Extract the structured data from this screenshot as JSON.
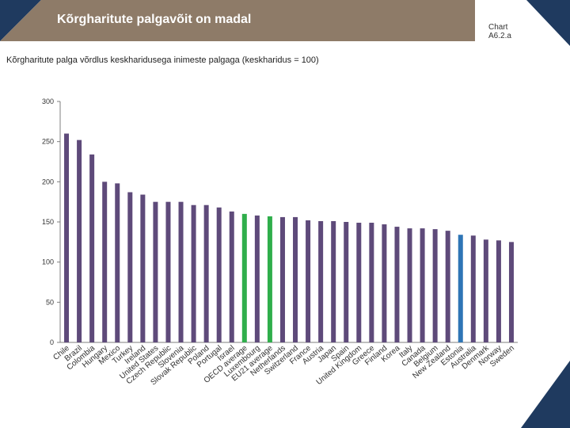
{
  "slide": {
    "title": "Kõrgharitute palgavõit on madal",
    "chart_ref_line1": "Chart",
    "chart_ref_line2": "A6.2.a",
    "subtitle": "Kõrgharitute palga võrdlus keskharidusega inimeste palgaga (keskharidus = 100)"
  },
  "colors": {
    "banner": "#8e7b68",
    "corner": "#1f3a5f",
    "bar_default": "#5e4a7a",
    "bar_oecd": "#2fae4b",
    "bar_estonia": "#2e75b6",
    "axis": "#7f7f7f"
  },
  "chart_data": {
    "type": "bar",
    "title": "Kõrgharitute palga võrdlus keskharidusega inimeste palgaga (keskharidus = 100)",
    "xlabel": "",
    "ylabel": "",
    "ylim": [
      0,
      300
    ],
    "yticks": [
      0,
      50,
      100,
      150,
      200,
      250,
      300
    ],
    "grid": false,
    "categories": [
      "Chile",
      "Brazil",
      "Colombia",
      "Hungary",
      "Mexico",
      "Turkey",
      "Ireland",
      "United States",
      "Czech Republic",
      "Slovenia",
      "Slovak Republic",
      "Poland",
      "Portugal",
      "Israel",
      "OECD average",
      "Luxembourg",
      "EU21 average",
      "Netherlands",
      "Switzerland",
      "France",
      "Austria",
      "Japan",
      "Spain",
      "United Kingdom",
      "Greece",
      "Finland",
      "Korea",
      "Italy",
      "Canada",
      "Belgium",
      "New Zealand",
      "Estonia",
      "Australia",
      "Denmark",
      "Norway",
      "Sweden"
    ],
    "values": [
      260,
      252,
      234,
      200,
      198,
      187,
      184,
      175,
      175,
      175,
      171,
      171,
      168,
      163,
      160,
      158,
      157,
      156,
      156,
      152,
      151,
      151,
      150,
      149,
      149,
      147,
      144,
      142,
      142,
      141,
      139,
      134,
      133,
      128,
      127,
      125
    ],
    "highlights": {
      "OECD average": "bar_oecd",
      "EU21 average": "bar_oecd",
      "Estonia": "bar_estonia"
    }
  }
}
